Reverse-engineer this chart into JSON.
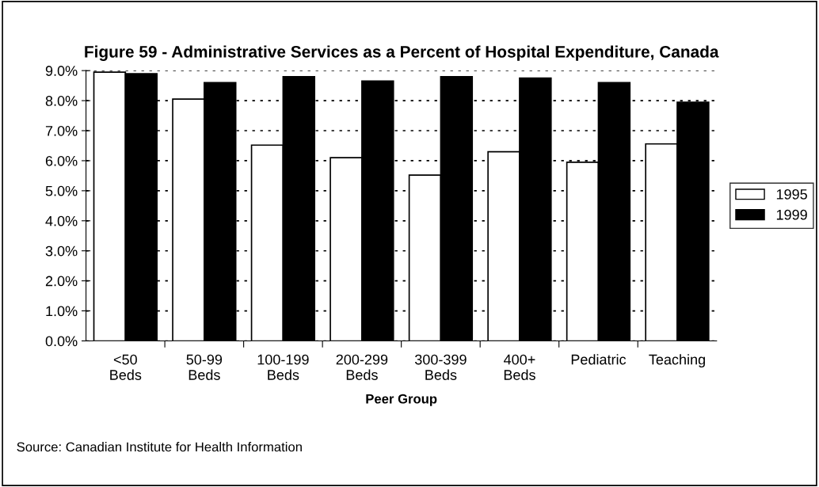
{
  "chart_data": {
    "type": "bar",
    "title": "Figure 59 - Administrative Services as a Percent of Hospital Expenditure, Canada",
    "xlabel": "Peer Group",
    "categories": [
      "<50\nBeds",
      "50-99\nBeds",
      "100-199\nBeds",
      "200-299\nBeds",
      "300-399\nBeds",
      "400+\nBeds",
      "Pediatric",
      "Teaching"
    ],
    "series": [
      {
        "name": "1995",
        "color": "#ffffff",
        "values": [
          8.95,
          8.05,
          6.52,
          6.1,
          5.52,
          6.3,
          5.95,
          6.56
        ]
      },
      {
        "name": "1999",
        "color": "#000000",
        "values": [
          8.9,
          8.6,
          8.8,
          8.65,
          8.8,
          8.75,
          8.6,
          7.95
        ]
      }
    ],
    "ylim": [
      0,
      9
    ],
    "yticks": [
      {
        "value": 0,
        "label": "0.0%"
      },
      {
        "value": 1,
        "label": "1.0%"
      },
      {
        "value": 2,
        "label": "2.0%"
      },
      {
        "value": 3,
        "label": "3.0%"
      },
      {
        "value": 4,
        "label": "4.0%"
      },
      {
        "value": 5,
        "label": "5.0%"
      },
      {
        "value": 6,
        "label": "6.0%"
      },
      {
        "value": 7,
        "label": "7.0%"
      },
      {
        "value": 8,
        "label": "8.0%"
      },
      {
        "value": 9,
        "label": "9.0%"
      }
    ],
    "grid": "y",
    "legend": "right",
    "annotations": [
      "Source: Canadian Institute for Health Information"
    ]
  }
}
